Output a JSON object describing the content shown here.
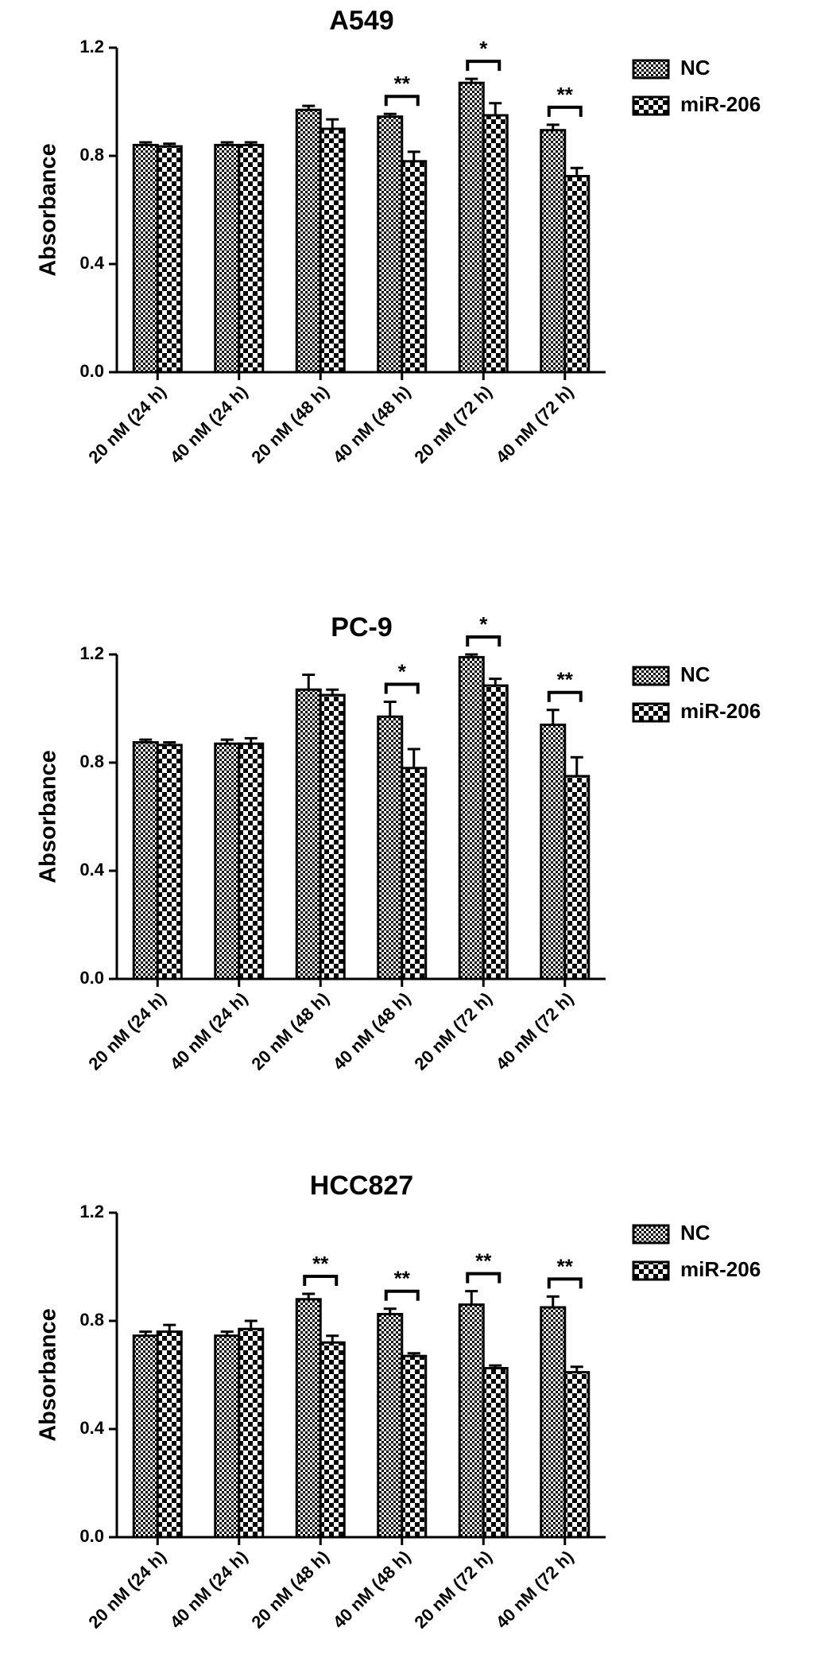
{
  "chart_data": [
    {
      "type": "bar",
      "title": "A549",
      "y_label": "Absorbance",
      "categories": [
        "20 nM (24 h)",
        "40 nM (24 h)",
        "20 nM (48 h)",
        "40 nM (48 h)",
        "20 nM (72 h)",
        "40 nM (72 h)"
      ],
      "series": [
        {
          "name": "NC",
          "color": "#000000",
          "pattern": "fine-checker",
          "values": [
            0.84,
            0.84,
            0.97,
            0.945,
            1.07,
            0.895
          ],
          "errors": [
            0.01,
            0.01,
            0.015,
            0.01,
            0.015,
            0.02
          ]
        },
        {
          "name": "miR-206",
          "color": "#000000",
          "pattern": "coarse-checker",
          "values": [
            0.835,
            0.84,
            0.9,
            0.78,
            0.95,
            0.725
          ],
          "errors": [
            0.01,
            0.01,
            0.035,
            0.035,
            0.045,
            0.03
          ]
        }
      ],
      "significance": [
        null,
        null,
        null,
        "**",
        "*",
        "**"
      ],
      "ylim": [
        0,
        1.2
      ],
      "yticks": [
        {
          "value": 0,
          "label": "0.0"
        },
        0.4,
        0.8,
        1.2
      ],
      "legend": "right"
    },
    {
      "type": "bar",
      "title": "PC-9",
      "y_label": "Absorbance",
      "categories": [
        "20 nM (24 h)",
        "40 nM (24 h)",
        "20 nM (48 h)",
        "40 nM (48 h)",
        "20 nM (72 h)",
        "40 nM (72 h)"
      ],
      "series": [
        {
          "name": "NC",
          "color": "#000000",
          "pattern": "fine-checker",
          "values": [
            0.875,
            0.87,
            1.07,
            0.97,
            1.19,
            0.94
          ],
          "errors": [
            0.01,
            0.015,
            0.055,
            0.055,
            0.01,
            0.055
          ]
        },
        {
          "name": "miR-206",
          "color": "#000000",
          "pattern": "coarse-checker",
          "values": [
            0.865,
            0.87,
            1.05,
            0.78,
            1.085,
            0.75
          ],
          "errors": [
            0.01,
            0.02,
            0.02,
            0.07,
            0.025,
            0.07
          ]
        }
      ],
      "significance": [
        null,
        null,
        null,
        "*",
        "*",
        "**"
      ],
      "ylim": [
        0,
        1.2
      ],
      "yticks": [
        {
          "value": 0,
          "label": "0.0"
        },
        0.4,
        0.8,
        1.2
      ],
      "legend": "right"
    },
    {
      "type": "bar",
      "title": "HCC827",
      "y_label": "Absorbance",
      "categories": [
        "20 nM (24 h)",
        "40 nM (24 h)",
        "20 nM (48 h)",
        "40 nM (48 h)",
        "20 nM (72 h)",
        "40 nM (72 h)"
      ],
      "series": [
        {
          "name": "NC",
          "color": "#000000",
          "pattern": "fine-checker",
          "values": [
            0.745,
            0.745,
            0.88,
            0.825,
            0.86,
            0.85
          ],
          "errors": [
            0.015,
            0.015,
            0.02,
            0.02,
            0.05,
            0.04
          ]
        },
        {
          "name": "miR-206",
          "color": "#000000",
          "pattern": "coarse-checker",
          "values": [
            0.76,
            0.77,
            0.72,
            0.67,
            0.625,
            0.61
          ],
          "errors": [
            0.025,
            0.03,
            0.025,
            0.01,
            0.01,
            0.02
          ]
        }
      ],
      "significance": [
        null,
        null,
        "**",
        "**",
        "**",
        "**"
      ],
      "ylim": [
        0,
        1.2
      ],
      "yticks": [
        {
          "value": 0,
          "label": "0.0"
        },
        0.4,
        0.8,
        1.2
      ],
      "legend": "right"
    }
  ]
}
